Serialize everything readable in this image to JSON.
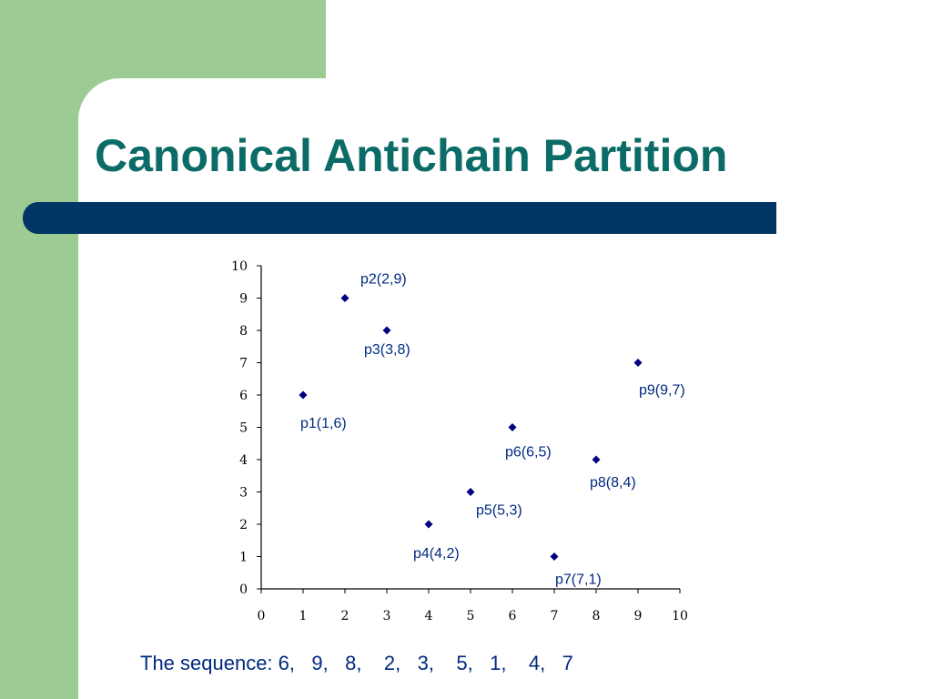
{
  "slide": {
    "title": "Canonical Antichain Partition",
    "colors": {
      "green": "#9ccb94",
      "bar": "#003764",
      "title": "#0b6b66",
      "marker": "#000080",
      "label": "#002a80"
    }
  },
  "chart_data": {
    "type": "scatter",
    "xlim": [
      0,
      10
    ],
    "ylim": [
      0,
      10
    ],
    "x_ticks": [
      "0",
      "1",
      "2",
      "3",
      "4",
      "5",
      "6",
      "7",
      "8",
      "9",
      "10"
    ],
    "y_ticks": [
      "0",
      "1",
      "2",
      "3",
      "4",
      "5",
      "6",
      "7",
      "8",
      "9",
      "10"
    ],
    "grid": false,
    "points": [
      {
        "label": "p1(1,6)",
        "x": 1,
        "y": 6
      },
      {
        "label": "p2(2,9)",
        "x": 2,
        "y": 9
      },
      {
        "label": "p3(3,8)",
        "x": 3,
        "y": 8
      },
      {
        "label": "p4(4,2)",
        "x": 4,
        "y": 2
      },
      {
        "label": "p5(5,3)",
        "x": 5,
        "y": 3
      },
      {
        "label": "p6(6,5)",
        "x": 6,
        "y": 5
      },
      {
        "label": "p7(7,1)",
        "x": 7,
        "y": 1
      },
      {
        "label": "p8(8,4)",
        "x": 8,
        "y": 4
      },
      {
        "label": "p9(9,7)",
        "x": 9,
        "y": 7
      }
    ]
  },
  "sequence": {
    "prefix": "The sequence:",
    "values": [
      "6,",
      "9,",
      "8,",
      "2,",
      "3,",
      "5,",
      "1,",
      "4,",
      "7"
    ]
  }
}
